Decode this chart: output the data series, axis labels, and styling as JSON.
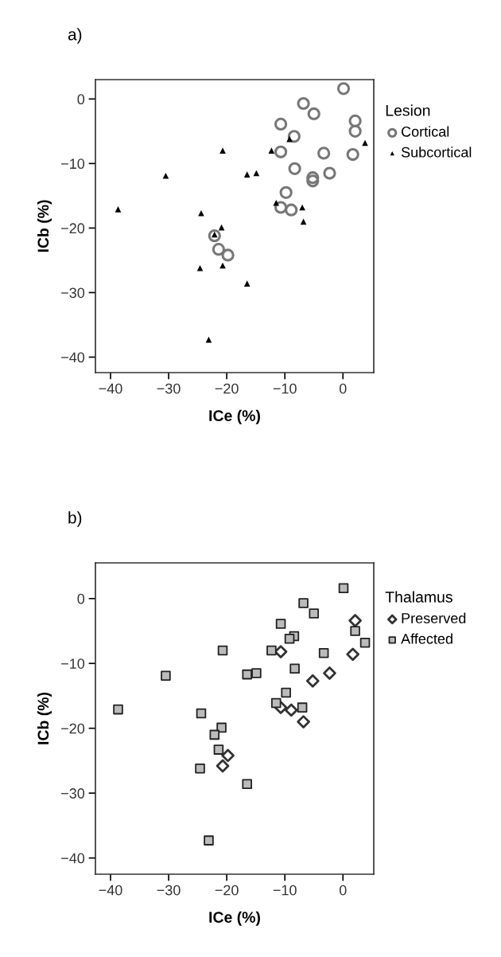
{
  "chart_data": [
    {
      "type": "scatter",
      "annotations": [
        "a)"
      ],
      "xlabel": "ICe (%)",
      "ylabel": "ICb (%)",
      "legend_title": "Lesion",
      "legend": "right",
      "grid": false,
      "xlim": [
        -42.6,
        5.3
      ],
      "ylim": [
        -42.4,
        3.0
      ],
      "xticks": [
        -40,
        -30,
        -20,
        -10,
        0
      ],
      "yticks": [
        -40,
        -30,
        -20,
        -10,
        0
      ],
      "series": [
        {
          "name": "Cortical",
          "marker": "circle",
          "color": "#777777",
          "x": [
            0.1,
            -6.8,
            -5.0,
            2.1,
            2.1,
            -10.7,
            -8.4,
            -10.7,
            -3.3,
            1.7,
            -8.3,
            -2.3,
            -5.2,
            -5.2,
            -9.8,
            -10.7,
            -8.9,
            -22.1,
            -21.4,
            -19.8
          ],
          "values": [
            1.6,
            -0.7,
            -2.3,
            -3.4,
            -5.0,
            -3.9,
            -5.8,
            -8.2,
            -8.4,
            -8.6,
            -10.8,
            -11.5,
            -12.2,
            -12.7,
            -14.5,
            -16.8,
            -17.2,
            -21.2,
            -23.3,
            -24.2
          ]
        },
        {
          "name": "Subcortical",
          "marker": "triangle",
          "color": "#000000",
          "x": [
            -9.2,
            3.8,
            -20.7,
            -12.3,
            -30.5,
            -16.5,
            -14.9,
            -38.7,
            -24.4,
            -11.5,
            -7.0,
            -6.8,
            -20.9,
            -22.1,
            -24.6,
            -20.7,
            -16.5,
            -23.1
          ],
          "values": [
            -6.2,
            -6.8,
            -8.0,
            -8.0,
            -11.9,
            -11.7,
            -11.5,
            -17.1,
            -17.7,
            -16.1,
            -16.8,
            -19.0,
            -19.9,
            -21.0,
            -26.2,
            -25.8,
            -28.6,
            -37.3
          ]
        }
      ]
    },
    {
      "type": "scatter",
      "annotations": [
        "b)"
      ],
      "xlabel": "ICe (%)",
      "ylabel": "ICb (%)",
      "legend_title": "Thalamus",
      "legend": "right",
      "grid": false,
      "xlim": [
        -42.6,
        5.3
      ],
      "ylim": [
        -42.5,
        5.5
      ],
      "xticks": [
        -40,
        -30,
        -20,
        -10,
        0
      ],
      "yticks": [
        -40,
        -30,
        -20,
        -10,
        0
      ],
      "series": [
        {
          "name": "Preserved",
          "marker": "diamond",
          "color": "#333333",
          "x": [
            2.1,
            -10.7,
            1.7,
            -2.3,
            -5.2,
            -10.7,
            -8.9,
            -6.8,
            -19.8,
            -20.7
          ],
          "values": [
            -3.4,
            -8.2,
            -8.6,
            -11.5,
            -12.7,
            -16.8,
            -17.2,
            -19.0,
            -24.2,
            -25.8
          ]
        },
        {
          "name": "Affected",
          "marker": "square",
          "color": "#bbbbbb",
          "x": [
            0.1,
            -6.8,
            -5.0,
            -10.7,
            -8.4,
            -9.2,
            2.1,
            3.8,
            -20.7,
            -12.3,
            -3.3,
            -8.3,
            -30.5,
            -16.5,
            -14.9,
            -9.8,
            -11.5,
            -7.0,
            -38.7,
            -24.4,
            -20.9,
            -22.1,
            -21.4,
            -24.6,
            -16.5,
            -23.1
          ],
          "values": [
            1.6,
            -0.7,
            -2.3,
            -3.9,
            -5.8,
            -6.2,
            -5.0,
            -6.8,
            -8.0,
            -8.0,
            -8.4,
            -10.8,
            -11.9,
            -11.7,
            -11.5,
            -14.5,
            -16.1,
            -16.8,
            -17.1,
            -17.7,
            -19.9,
            -21.0,
            -23.3,
            -26.2,
            -28.6,
            -37.3
          ]
        }
      ]
    }
  ]
}
